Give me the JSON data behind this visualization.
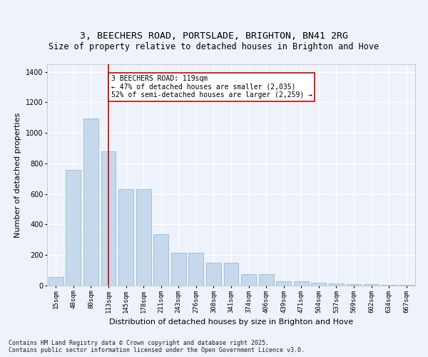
{
  "title_line1": "3, BEECHERS ROAD, PORTSLADE, BRIGHTON, BN41 2RG",
  "title_line2": "Size of property relative to detached houses in Brighton and Hove",
  "xlabel": "Distribution of detached houses by size in Brighton and Hove",
  "ylabel": "Number of detached properties",
  "categories": [
    "15sqm",
    "48sqm",
    "80sqm",
    "113sqm",
    "145sqm",
    "178sqm",
    "211sqm",
    "243sqm",
    "276sqm",
    "308sqm",
    "341sqm",
    "374sqm",
    "406sqm",
    "439sqm",
    "471sqm",
    "504sqm",
    "537sqm",
    "569sqm",
    "602sqm",
    "634sqm",
    "667sqm"
  ],
  "values": [
    55,
    760,
    1095,
    880,
    630,
    630,
    335,
    215,
    215,
    150,
    150,
    75,
    75,
    30,
    30,
    20,
    15,
    10,
    8,
    5,
    5
  ],
  "bar_color": "#c6d9ec",
  "bar_edge_color": "#8ab0cc",
  "vline_x_idx": 3,
  "vline_color": "#cc0000",
  "annotation_text": "3 BEECHERS ROAD: 119sqm\n← 47% of detached houses are smaller (2,035)\n52% of semi-detached houses are larger (2,259) →",
  "annotation_box_facecolor": "#ffffff",
  "annotation_box_edgecolor": "#cc0000",
  "footnote": "Contains HM Land Registry data © Crown copyright and database right 2025.\nContains public sector information licensed under the Open Government Licence v3.0.",
  "ylim": [
    0,
    1450
  ],
  "background_color": "#eef2fa",
  "grid_color": "#ffffff",
  "title_fontsize": 9.5,
  "subtitle_fontsize": 8.5,
  "tick_fontsize": 6.5,
  "ylabel_fontsize": 8,
  "xlabel_fontsize": 8,
  "annotation_fontsize": 7,
  "footnote_fontsize": 6
}
